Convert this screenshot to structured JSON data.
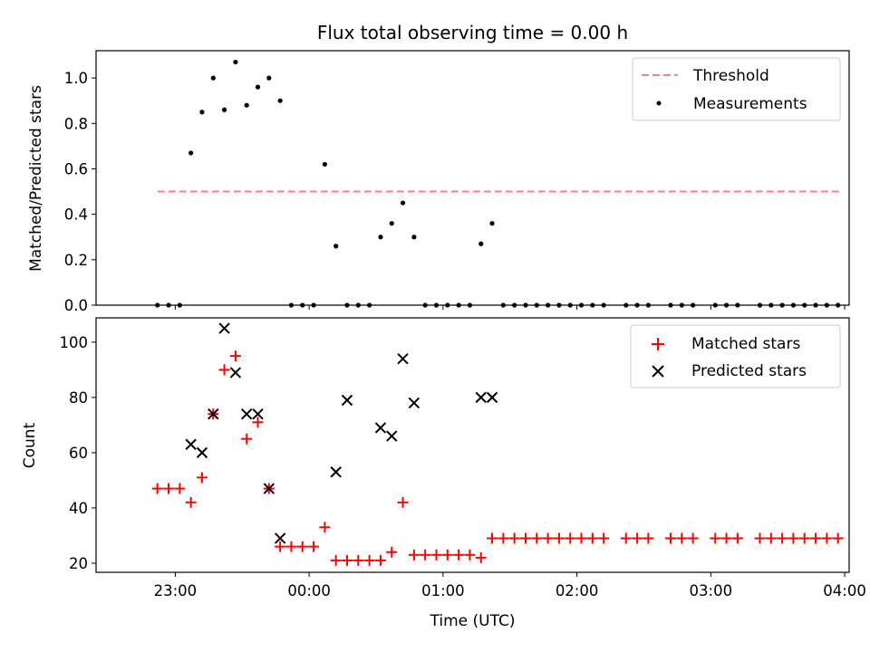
{
  "chart_data": [
    {
      "type": "scatter",
      "title": "Flux total observing time = 0.00 h",
      "ylabel": "Matched/Predicted stars",
      "ylim": [
        0,
        1.12
      ],
      "yticks": [
        "0.0",
        "0.2",
        "0.4",
        "0.6",
        "0.8",
        "1.0"
      ],
      "threshold": {
        "name": "Threshold",
        "value": 0.5,
        "x_start": "22:52",
        "x_end": "03:59",
        "color": "#ff7f7f"
      },
      "measurements": {
        "name": "Measurements",
        "color": "#000000",
        "x": [
          "22:52",
          "22:57",
          "23:02",
          "23:07",
          "23:12",
          "23:17",
          "23:22",
          "23:27",
          "23:32",
          "23:37",
          "23:42",
          "23:47",
          "23:52",
          "23:57",
          "00:02",
          "00:07",
          "00:12",
          "00:17",
          "00:22",
          "00:27",
          "00:32",
          "00:37",
          "00:42",
          "00:47",
          "00:52",
          "00:57",
          "01:02",
          "01:07",
          "01:12",
          "01:17",
          "01:22",
          "01:27",
          "01:32",
          "01:37",
          "01:42",
          "01:47",
          "01:52",
          "01:57",
          "02:02",
          "02:07",
          "02:12",
          "02:22",
          "02:27",
          "02:32",
          "02:42",
          "02:47",
          "02:52",
          "03:02",
          "03:07",
          "03:12",
          "03:22",
          "03:27",
          "03:32",
          "03:37",
          "03:42",
          "03:47",
          "03:52",
          "03:57"
        ],
        "y": [
          0,
          0,
          0,
          0.67,
          0.85,
          1.0,
          0.86,
          1.07,
          0.88,
          0.96,
          1.0,
          0.9,
          0,
          0,
          0,
          0.62,
          0.26,
          0,
          0,
          0,
          0.3,
          0.36,
          0.45,
          0.3,
          0,
          0,
          0,
          0,
          0,
          0.27,
          0.36,
          0,
          0,
          0,
          0,
          0,
          0,
          0,
          0,
          0,
          0,
          0,
          0,
          0,
          0,
          0,
          0,
          0,
          0,
          0,
          0,
          0,
          0,
          0,
          0,
          0,
          0,
          0
        ]
      }
    },
    {
      "type": "scatter",
      "xlabel": "Time (UTC)",
      "ylabel": "Count",
      "ylim": [
        16.7,
        108.8
      ],
      "yticks": [
        "20",
        "40",
        "60",
        "80",
        "100"
      ],
      "xticks": [
        "23:00",
        "00:00",
        "01:00",
        "02:00",
        "03:00",
        "04:00"
      ],
      "legend": [
        "Matched stars",
        "Predicted stars"
      ],
      "matched": {
        "name": "Matched stars",
        "color": "#ff0000",
        "x": [
          "22:52",
          "22:57",
          "23:02",
          "23:07",
          "23:12",
          "23:17",
          "23:22",
          "23:27",
          "23:32",
          "23:37",
          "23:42",
          "23:47",
          "23:52",
          "23:57",
          "00:02",
          "00:07",
          "00:12",
          "00:17",
          "00:22",
          "00:27",
          "00:32",
          "00:37",
          "00:42",
          "00:47",
          "00:52",
          "00:57",
          "01:02",
          "01:07",
          "01:12",
          "01:17",
          "01:22",
          "01:27",
          "01:32",
          "01:37",
          "01:42",
          "01:47",
          "01:52",
          "01:57",
          "02:02",
          "02:07",
          "02:12",
          "02:22",
          "02:27",
          "02:32",
          "02:42",
          "02:47",
          "02:52",
          "03:02",
          "03:07",
          "03:12",
          "03:22",
          "03:27",
          "03:32",
          "03:37",
          "03:42",
          "03:47",
          "03:52",
          "03:57"
        ],
        "y": [
          47,
          47,
          47,
          42,
          51,
          74,
          90,
          95,
          65,
          71,
          47,
          26,
          26,
          26,
          26,
          33,
          21,
          21,
          21,
          21,
          21,
          24,
          42,
          23,
          23,
          23,
          23,
          23,
          23,
          22,
          29,
          29,
          29,
          29,
          29,
          29,
          29,
          29,
          29,
          29,
          29,
          29,
          29,
          29,
          29,
          29,
          29,
          29,
          29,
          29,
          29,
          29,
          29,
          29,
          29,
          29,
          29,
          29
        ]
      },
      "predicted": {
        "name": "Predicted stars",
        "color": "#000000",
        "x": [
          "23:07",
          "23:12",
          "23:17",
          "23:22",
          "23:27",
          "23:32",
          "23:37",
          "23:42",
          "23:47",
          "00:12",
          "00:17",
          "00:32",
          "00:37",
          "00:42",
          "00:47",
          "01:17",
          "01:22"
        ],
        "y": [
          63,
          60,
          74,
          105,
          89,
          74,
          74,
          47,
          29,
          53,
          79,
          69,
          66,
          94,
          78,
          80,
          80
        ]
      }
    }
  ]
}
